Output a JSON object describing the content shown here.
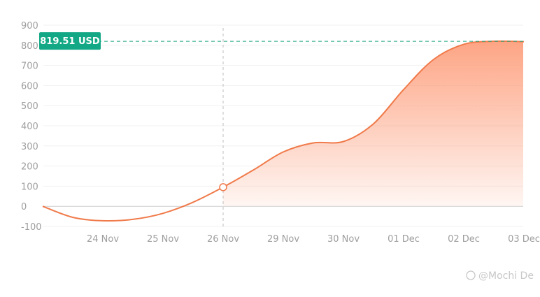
{
  "chart_data": {
    "type": "area",
    "title": "",
    "xlabel": "",
    "ylabel": "",
    "ylim": [
      -100,
      900
    ],
    "y_ticks": [
      "900",
      "800",
      "700",
      "600",
      "500",
      "400",
      "300",
      "200",
      "100",
      "0",
      "-100"
    ],
    "x_ticks": [
      "24 Nov",
      "25 Nov",
      "26 Nov",
      "29 Nov",
      "30 Nov",
      "01 Dec",
      "02 Dec",
      "03 Dec"
    ],
    "x": [
      -1.0,
      -0.5,
      0.0,
      0.5,
      1.0,
      1.5,
      2.0,
      2.5,
      3.0,
      3.5,
      4.0,
      4.5,
      5.0,
      5.5,
      6.0,
      6.5,
      7.0
    ],
    "series": [
      {
        "values": [
          0,
          -55,
          -72,
          -65,
          -35,
          20,
          95,
          180,
          270,
          315,
          322,
          410,
          580,
          730,
          805,
          820,
          818
        ]
      }
    ],
    "current_price_label": "819.51 USD",
    "current_price": 819.51,
    "highlight_point": {
      "x": 2.0,
      "y": 95
    },
    "grid": "horizontal",
    "line_color": "#f07a4a",
    "area_top_color": "#fda07e",
    "price_line_color": "#1aa37a",
    "label_bg_color": "#13a885"
  },
  "watermark": "@Mochi De"
}
